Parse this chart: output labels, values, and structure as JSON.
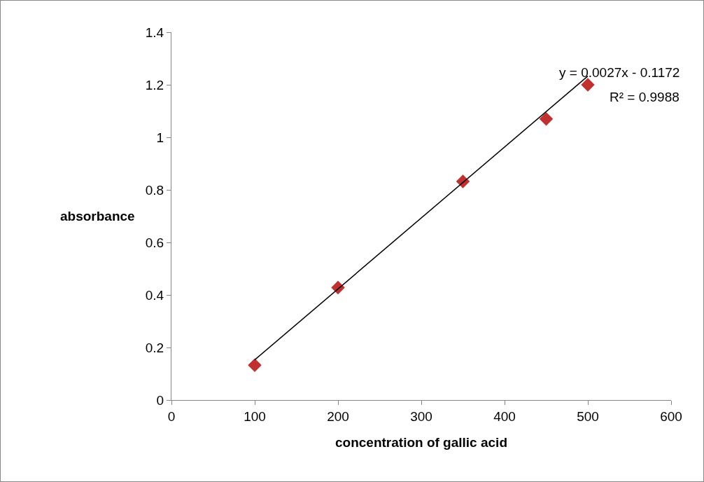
{
  "chart_data": {
    "type": "scatter",
    "xlabel": "concentration of gallic acid",
    "ylabel": "absorbance",
    "xlim": [
      0,
      600
    ],
    "xticks": [
      0,
      100,
      200,
      300,
      400,
      500,
      600
    ],
    "ylim": [
      0,
      1.4
    ],
    "yticks": [
      0,
      0.2,
      0.4,
      0.6,
      0.8,
      1,
      1.2,
      1.4
    ],
    "grid": false,
    "marker": "diamond",
    "series": [
      {
        "color": "#c0302f",
        "x": [
          100,
          200,
          350,
          450,
          500
        ],
        "values": [
          0.133,
          0.428,
          0.832,
          1.07,
          1.2
        ]
      },
      {
        "type": "line",
        "color": "#000000",
        "marker": "none",
        "x": [
          100,
          500
        ],
        "values": [
          0.153,
          1.233
        ]
      }
    ],
    "annotations": [
      "y = 0.0027x - 0.1172",
      "R² = 0.9988"
    ]
  }
}
